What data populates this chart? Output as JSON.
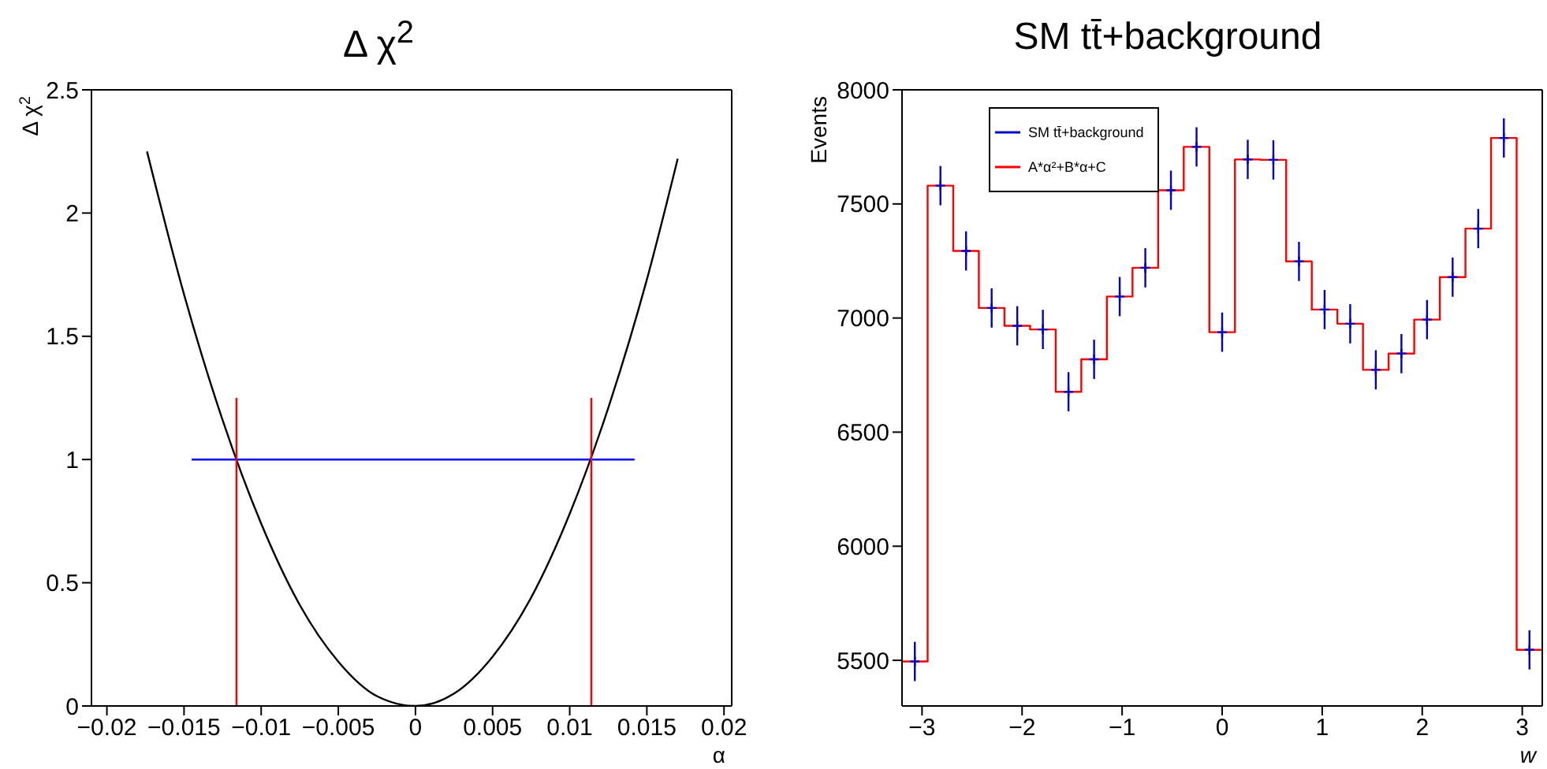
{
  "chart_data": [
    {
      "type": "line",
      "title": "Δ χ$^{2}$",
      "xlabel": "α",
      "ylabel": "Δ χ$^{2}$",
      "xlim": [
        -0.021,
        0.0205
      ],
      "ylim": [
        0,
        2.5
      ],
      "xticks": [
        -0.02,
        -0.015,
        -0.01,
        -0.005,
        0,
        0.005,
        0.01,
        0.015,
        0.02
      ],
      "yticks": [
        0,
        0.5,
        1,
        1.5,
        2,
        2.5
      ],
      "marker": "none",
      "grid": false,
      "legend": false,
      "series": [
        {
          "color": "#000000",
          "x": [
            -0.0174,
            -0.015,
            -0.0125,
            -0.01,
            -0.0075,
            -0.005,
            -0.0025,
            0,
            0.0025,
            0.005,
            0.0075,
            0.01,
            0.0125,
            0.015,
            0.017
          ],
          "values": [
            2.25,
            1.67,
            1.16,
            0.74,
            0.41,
            0.18,
            0.04,
            0,
            0.05,
            0.2,
            0.44,
            0.78,
            1.21,
            1.73,
            2.22
          ]
        },
        {
          "color": "#0000ff",
          "x": [
            -0.0145,
            0.0142
          ],
          "values": [
            1,
            1
          ]
        },
        {
          "color": "#ff0000",
          "x": [
            -0.0116,
            -0.0116
          ],
          "values": [
            0,
            1.25
          ]
        },
        {
          "color": "#ff0000",
          "x": [
            0.0114,
            0.0114
          ],
          "values": [
            0,
            1.25
          ]
        }
      ]
    },
    {
      "type": "histogram",
      "title": "SM tt̄+background",
      "xlabel": "w",
      "ylabel": "Events",
      "xlim": [
        -3.2,
        3.2
      ],
      "ylim": [
        5300,
        8000
      ],
      "xticks": [
        -3,
        -2,
        -1,
        0,
        1,
        2,
        3
      ],
      "yticks": [
        5500,
        6000,
        6500,
        7000,
        7500,
        8000
      ],
      "marker": "cross",
      "grid": false,
      "legend": "top left",
      "series": [
        {
          "type": "scatter",
          "name": "SM tt̄+background",
          "color": "#0000cc",
          "x": [
            -3.072,
            -2.816,
            -2.56,
            -2.304,
            -2.048,
            -1.792,
            -1.536,
            -1.28,
            -1.024,
            -0.768,
            -0.512,
            -0.256,
            0,
            0.256,
            0.512,
            0.768,
            1.024,
            1.28,
            1.536,
            1.792,
            2.048,
            2.304,
            2.56,
            2.816,
            3.072
          ],
          "values": [
            5495,
            7580,
            7294,
            7044,
            6966,
            6950,
            6677,
            6819,
            7094,
            7220,
            7560,
            7750,
            6938,
            7695,
            7693,
            7248,
            7037,
            6975,
            6773,
            6844,
            6993,
            7179,
            7392,
            7789,
            5546
          ],
          "errors": [
            86,
            86,
            86,
            86,
            86,
            86,
            86,
            86,
            86,
            86,
            86,
            86,
            86,
            86,
            86,
            86,
            86,
            86,
            86,
            86,
            86,
            86,
            86,
            86,
            86
          ]
        },
        {
          "name": "A*α²+B*α+C",
          "color": "#ff0000",
          "bins": [
            -3.2,
            -2.944,
            -2.688,
            -2.432,
            -2.176,
            -1.92,
            -1.664,
            -1.408,
            -1.152,
            -0.896,
            -0.64,
            -0.384,
            -0.128,
            0.128,
            0.384,
            0.64,
            0.896,
            1.152,
            1.408,
            1.664,
            1.92,
            2.176,
            2.432,
            2.688,
            2.944,
            3.2
          ],
          "values": [
            5495,
            7580,
            7294,
            7044,
            6966,
            6950,
            6677,
            6819,
            7094,
            7220,
            7560,
            7750,
            6938,
            7695,
            7693,
            7248,
            7037,
            6975,
            6773,
            6844,
            6993,
            7179,
            7392,
            7789,
            5546
          ]
        }
      ]
    }
  ]
}
